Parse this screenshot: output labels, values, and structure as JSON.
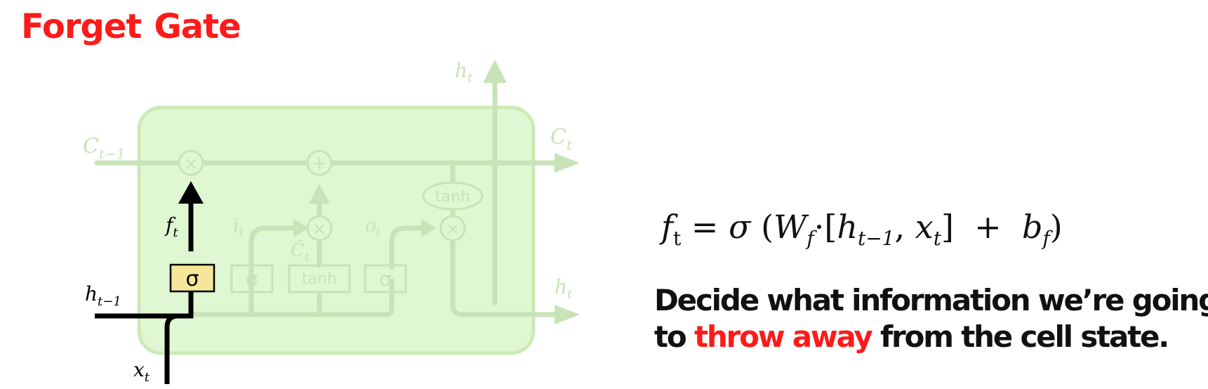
{
  "title": {
    "word1": "Forget",
    "word2": "Gate"
  },
  "diagram": {
    "labels": {
      "c_prev": "C",
      "c_prev_sub": "t−1",
      "c_next": "C",
      "c_next_sub": "t",
      "h_top": "h",
      "h_top_sub": "t",
      "h_right": "h",
      "h_right_sub": "t",
      "h_prev": "h",
      "h_prev_sub": "t−1",
      "x_in": "x",
      "x_in_sub": "t",
      "f_gate": "f",
      "f_gate_sub": "t",
      "i_gate": "i",
      "i_gate_sub": "t",
      "c_tilde": "C̃",
      "c_tilde_sub": "t",
      "o_gate": "o",
      "o_gate_sub": "t"
    },
    "ops": {
      "sigma": "σ",
      "tanh": "tanh",
      "times": "×",
      "plus": "+"
    },
    "colors": {
      "cell_fill": "#dff7d2",
      "cell_stroke": "#cbeab8",
      "faded_line": "#c8e3b7",
      "highlight_line": "#000000",
      "sigma_box_fill": "#f4e79a",
      "accent_red": "#ff1a1a"
    }
  },
  "equation": {
    "lhs": "f",
    "lhs_sub": "t",
    "eq": "=",
    "sigma": "σ",
    "open_paren": "(",
    "w": "W",
    "w_sub": "f",
    "dot": "·",
    "open_bracket": "[",
    "h": "h",
    "h_sub": "t−1",
    "comma": ",",
    "x": "x",
    "x_sub": "t",
    "close_bracket": "]",
    "plus": "+",
    "b": "b",
    "b_sub": "f",
    "close_paren": ")"
  },
  "description": {
    "line1": "Decide what information we’re going",
    "line2_prefix": "to",
    "highlight": "throw away",
    "line2_suffix": "from the cell state."
  }
}
